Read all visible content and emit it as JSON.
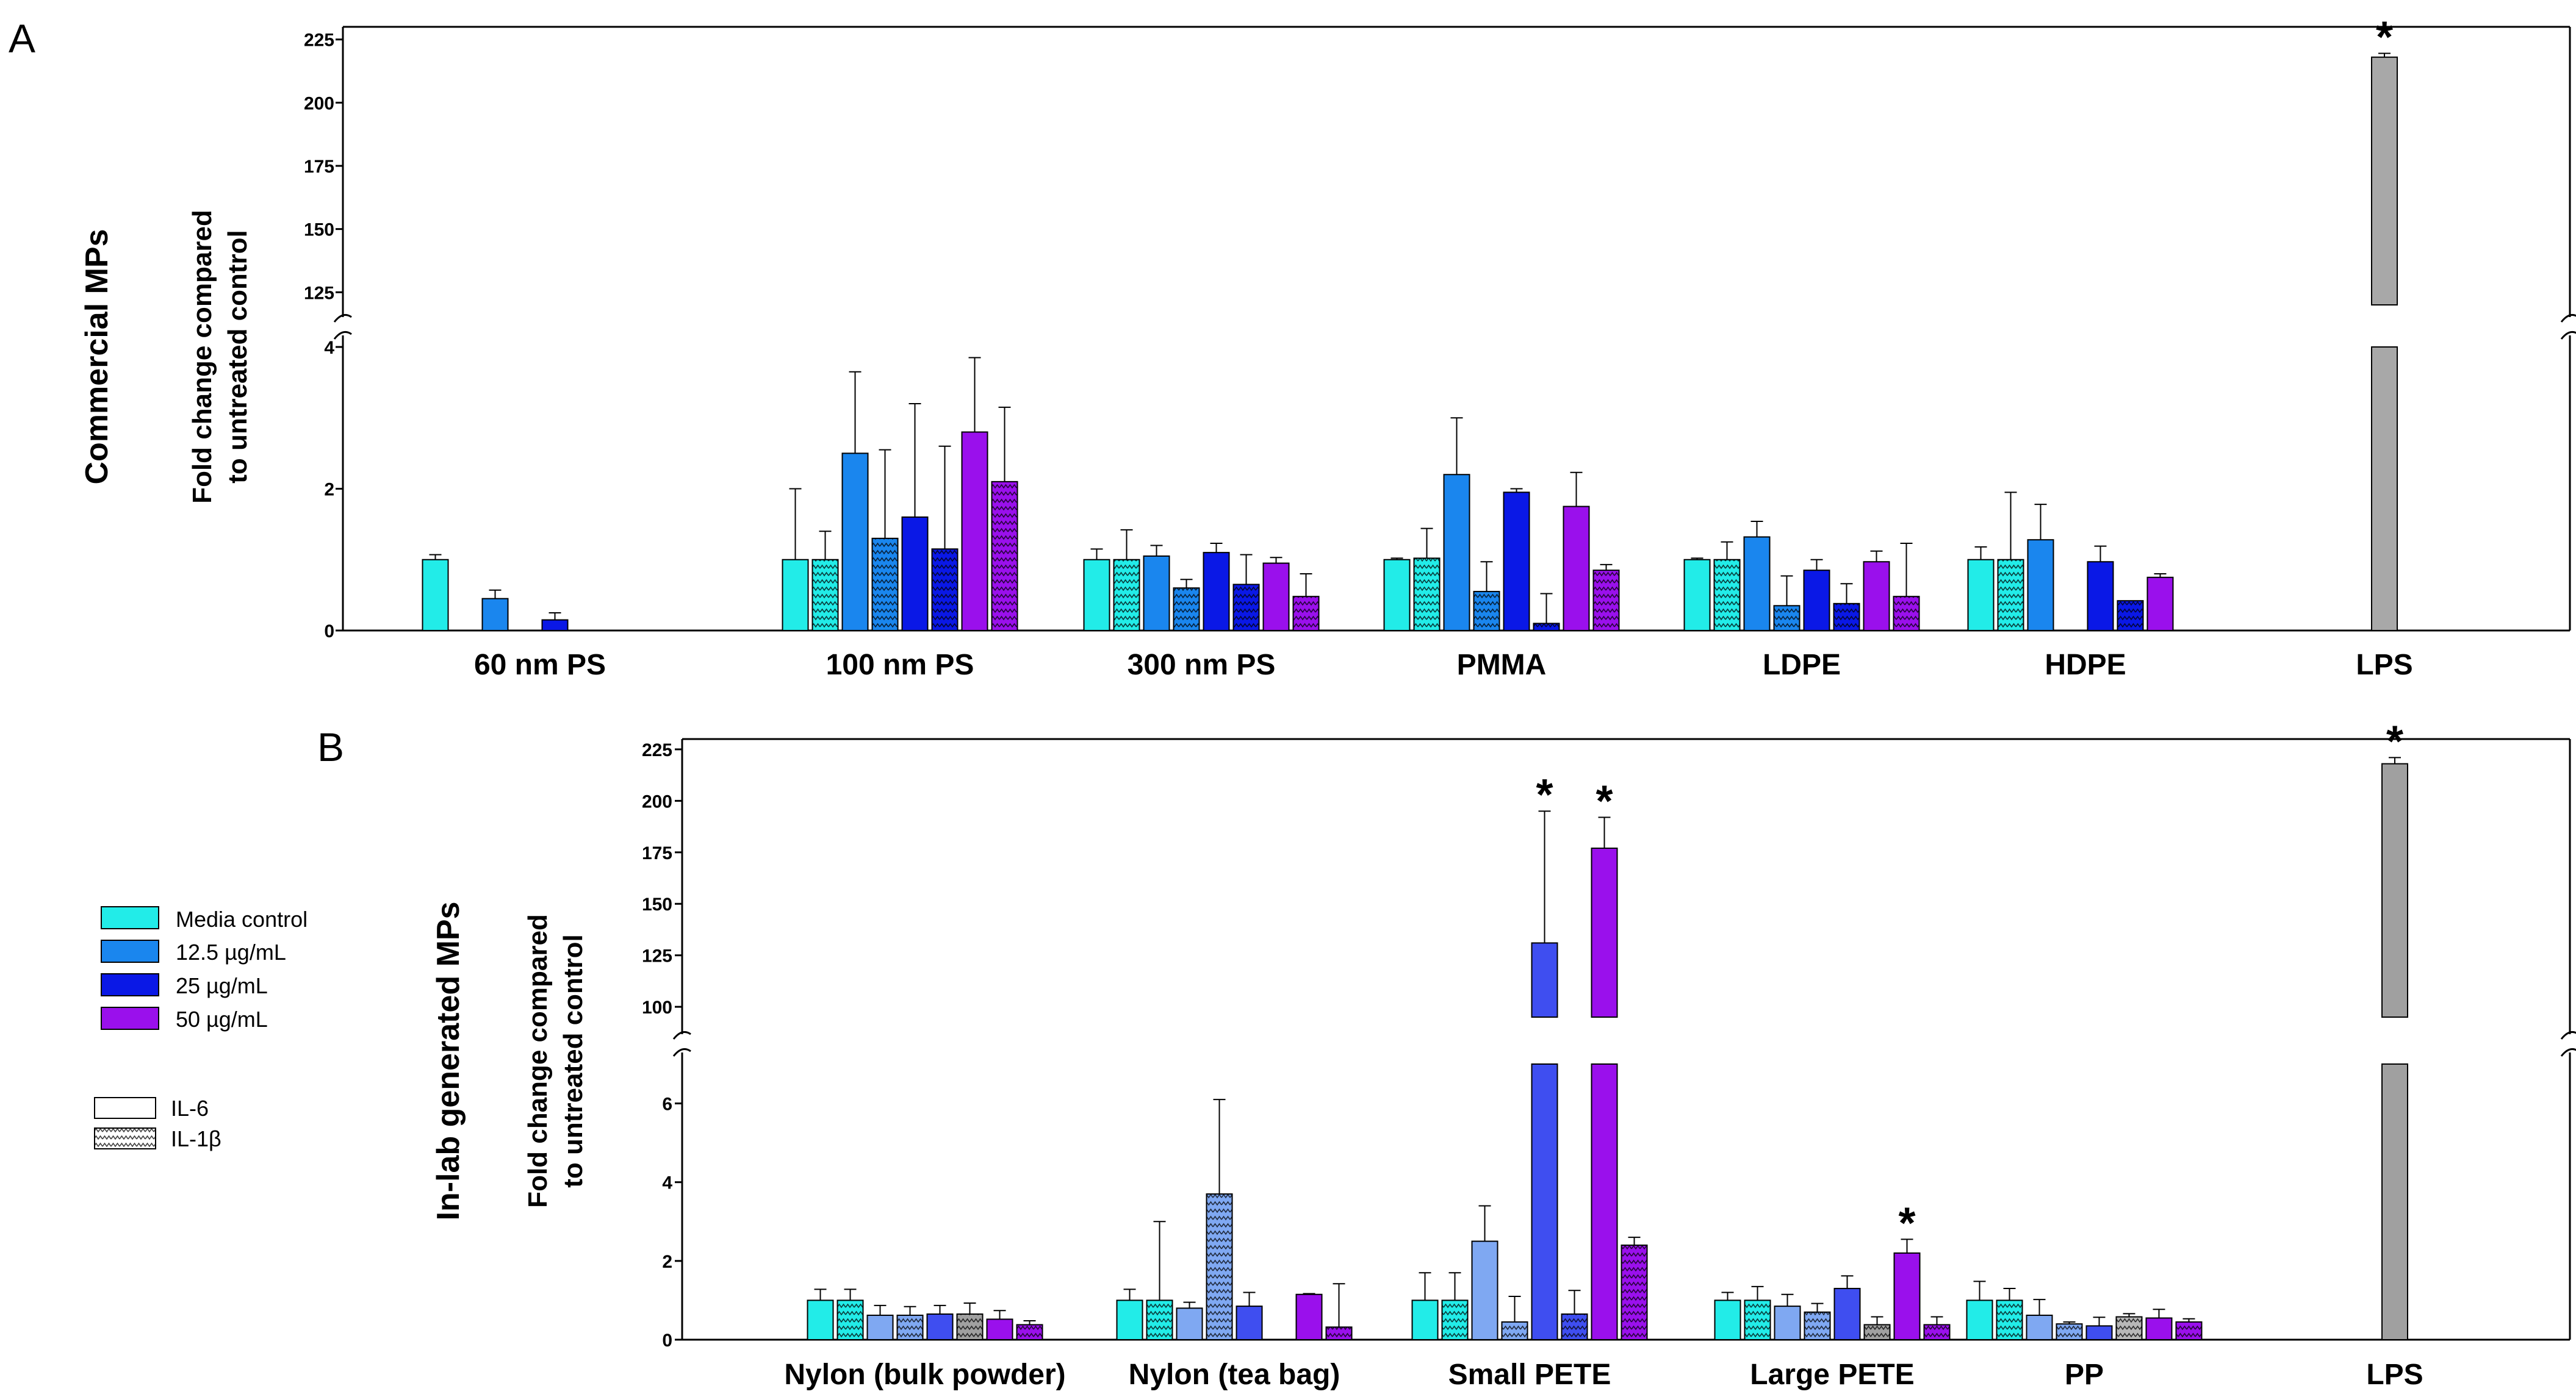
{
  "colors": {
    "media": "#22ece8",
    "c12_5": "#1a86ee",
    "c25": "#0a18e6",
    "c50": "#9a10ec",
    "lps": "#a8a8a8",
    "light_blue": "#7fa8f2",
    "royal_blue": "#3f4ef0",
    "grey_dark": "#a0a0a0",
    "grey_light": "#b8b8b8"
  },
  "legend": {
    "concentration": [
      {
        "label": "Media control",
        "color_key": "media"
      },
      {
        "label": "12.5 µg/mL",
        "color_key": "c12_5"
      },
      {
        "label": "25 µg/mL",
        "color_key": "c25"
      },
      {
        "label": "50 µg/mL",
        "color_key": "c50"
      }
    ],
    "cytokine": [
      {
        "label": "IL-6",
        "pattern": false
      },
      {
        "label": "IL-1β",
        "pattern": true
      }
    ]
  },
  "chart_data": [
    {
      "panel": "A",
      "type": "bar",
      "side_label": "Commercial MPs",
      "ylabel_lines": [
        "Fold change compared",
        "to untreated control"
      ],
      "ylim_lower": [
        0,
        4
      ],
      "ylim_upper": [
        120,
        230
      ],
      "yticks_lower": [
        "0",
        "2",
        "4"
      ],
      "yticks_upper": [
        "125",
        "150",
        "175",
        "200",
        "225"
      ],
      "categories": [
        "60 nm PS",
        "100 nm PS",
        "300 nm PS",
        "PMMA",
        "LDPE",
        "HDPE",
        "LPS"
      ],
      "bars": [
        {
          "cat": 0,
          "slot": 0,
          "value": 1.0,
          "err": 0.07,
          "color": "media",
          "hatch": false
        },
        {
          "cat": 0,
          "slot": 2,
          "value": 0.45,
          "err": 0.12,
          "color": "c12_5",
          "hatch": false
        },
        {
          "cat": 0,
          "slot": 4,
          "value": 0.15,
          "err": 0.1,
          "color": "c25",
          "hatch": false
        },
        {
          "cat": 1,
          "slot": 0,
          "value": 1.0,
          "err": 1.0,
          "color": "media",
          "hatch": false
        },
        {
          "cat": 1,
          "slot": 1,
          "value": 1.0,
          "err": 0.4,
          "color": "media",
          "hatch": true
        },
        {
          "cat": 1,
          "slot": 2,
          "value": 2.5,
          "err": 1.15,
          "color": "c12_5",
          "hatch": false
        },
        {
          "cat": 1,
          "slot": 3,
          "value": 1.3,
          "err": 1.25,
          "color": "c12_5",
          "hatch": true
        },
        {
          "cat": 1,
          "slot": 4,
          "value": 1.6,
          "err": 1.6,
          "color": "c25",
          "hatch": false
        },
        {
          "cat": 1,
          "slot": 5,
          "value": 1.15,
          "err": 1.45,
          "color": "c25",
          "hatch": true
        },
        {
          "cat": 1,
          "slot": 6,
          "value": 2.8,
          "err": 1.05,
          "color": "c50",
          "hatch": false
        },
        {
          "cat": 1,
          "slot": 7,
          "value": 2.1,
          "err": 1.05,
          "color": "c50",
          "hatch": true
        },
        {
          "cat": 2,
          "slot": 0,
          "value": 1.0,
          "err": 0.15,
          "color": "media",
          "hatch": false
        },
        {
          "cat": 2,
          "slot": 1,
          "value": 1.0,
          "err": 0.42,
          "color": "media",
          "hatch": true
        },
        {
          "cat": 2,
          "slot": 2,
          "value": 1.05,
          "err": 0.15,
          "color": "c12_5",
          "hatch": false
        },
        {
          "cat": 2,
          "slot": 3,
          "value": 0.6,
          "err": 0.12,
          "color": "c12_5",
          "hatch": true
        },
        {
          "cat": 2,
          "slot": 4,
          "value": 1.1,
          "err": 0.13,
          "color": "c25",
          "hatch": false
        },
        {
          "cat": 2,
          "slot": 5,
          "value": 0.65,
          "err": 0.42,
          "color": "c25",
          "hatch": true
        },
        {
          "cat": 2,
          "slot": 6,
          "value": 0.95,
          "err": 0.08,
          "color": "c50",
          "hatch": false
        },
        {
          "cat": 2,
          "slot": 7,
          "value": 0.48,
          "err": 0.32,
          "color": "c50",
          "hatch": true
        },
        {
          "cat": 3,
          "slot": 0,
          "value": 1.0,
          "err": 0.02,
          "color": "media",
          "hatch": false
        },
        {
          "cat": 3,
          "slot": 1,
          "value": 1.02,
          "err": 0.42,
          "color": "media",
          "hatch": true
        },
        {
          "cat": 3,
          "slot": 2,
          "value": 2.2,
          "err": 0.8,
          "color": "c12_5",
          "hatch": false
        },
        {
          "cat": 3,
          "slot": 3,
          "value": 0.55,
          "err": 0.42,
          "color": "c12_5",
          "hatch": true
        },
        {
          "cat": 3,
          "slot": 4,
          "value": 1.95,
          "err": 0.05,
          "color": "c25",
          "hatch": false
        },
        {
          "cat": 3,
          "slot": 5,
          "value": 0.1,
          "err": 0.42,
          "color": "c25",
          "hatch": true
        },
        {
          "cat": 3,
          "slot": 6,
          "value": 1.75,
          "err": 0.48,
          "color": "c50",
          "hatch": false
        },
        {
          "cat": 3,
          "slot": 7,
          "value": 0.85,
          "err": 0.08,
          "color": "c50",
          "hatch": true
        },
        {
          "cat": 4,
          "slot": 0,
          "value": 1.0,
          "err": 0.02,
          "color": "media",
          "hatch": false
        },
        {
          "cat": 4,
          "slot": 1,
          "value": 1.0,
          "err": 0.25,
          "color": "media",
          "hatch": true
        },
        {
          "cat": 4,
          "slot": 2,
          "value": 1.32,
          "err": 0.22,
          "color": "c12_5",
          "hatch": false
        },
        {
          "cat": 4,
          "slot": 3,
          "value": 0.35,
          "err": 0.42,
          "color": "c12_5",
          "hatch": true
        },
        {
          "cat": 4,
          "slot": 4,
          "value": 0.85,
          "err": 0.15,
          "color": "c25",
          "hatch": false
        },
        {
          "cat": 4,
          "slot": 5,
          "value": 0.38,
          "err": 0.28,
          "color": "c25",
          "hatch": true
        },
        {
          "cat": 4,
          "slot": 6,
          "value": 0.97,
          "err": 0.15,
          "color": "c50",
          "hatch": false
        },
        {
          "cat": 4,
          "slot": 7,
          "value": 0.48,
          "err": 0.75,
          "color": "c50",
          "hatch": true
        },
        {
          "cat": 5,
          "slot": 0,
          "value": 1.0,
          "err": 0.18,
          "color": "media",
          "hatch": false
        },
        {
          "cat": 5,
          "slot": 1,
          "value": 1.0,
          "err": 0.95,
          "color": "media",
          "hatch": true
        },
        {
          "cat": 5,
          "slot": 2,
          "value": 1.28,
          "err": 0.5,
          "color": "c12_5",
          "hatch": false
        },
        {
          "cat": 5,
          "slot": 4,
          "value": 0.97,
          "err": 0.22,
          "color": "c25",
          "hatch": false
        },
        {
          "cat": 5,
          "slot": 5,
          "value": 0.42,
          "err": 0.0,
          "color": "c25",
          "hatch": true
        },
        {
          "cat": 5,
          "slot": 6,
          "value": 0.75,
          "err": 0.05,
          "color": "c50",
          "hatch": false
        },
        {
          "cat": 6,
          "slot": 3.5,
          "value": 218,
          "err": 1.5,
          "color": "lps",
          "hatch": false,
          "star": true
        }
      ],
      "star_text": "*"
    },
    {
      "panel": "B",
      "type": "bar",
      "side_label": "In-lab generated MPs",
      "ylabel_lines": [
        "Fold change compared",
        "to untreated control"
      ],
      "ylim_lower": [
        0,
        7
      ],
      "ylim_upper": [
        95,
        230
      ],
      "yticks_lower": [
        "0",
        "2",
        "4",
        "6"
      ],
      "yticks_upper": [
        "100",
        "125",
        "150",
        "175",
        "200",
        "225"
      ],
      "categories": [
        "Nylon (bulk powder)",
        "Nylon (tea bag)",
        "Small PETE",
        "Large PETE",
        "PP",
        "LPS"
      ],
      "bars": [
        {
          "cat": 0,
          "slot": 0,
          "value": 1.0,
          "err": 0.28,
          "color": "media",
          "hatch": false
        },
        {
          "cat": 0,
          "slot": 1,
          "value": 1.0,
          "err": 0.28,
          "color": "media",
          "hatch": true
        },
        {
          "cat": 0,
          "slot": 2,
          "value": 0.62,
          "err": 0.25,
          "color": "light_blue",
          "hatch": false
        },
        {
          "cat": 0,
          "slot": 3,
          "value": 0.62,
          "err": 0.22,
          "color": "light_blue",
          "hatch": true
        },
        {
          "cat": 0,
          "slot": 4,
          "value": 0.65,
          "err": 0.22,
          "color": "royal_blue",
          "hatch": false
        },
        {
          "cat": 0,
          "slot": 5,
          "value": 0.65,
          "err": 0.28,
          "color": "grey_dark",
          "hatch": true
        },
        {
          "cat": 0,
          "slot": 6,
          "value": 0.52,
          "err": 0.22,
          "color": "c50",
          "hatch": false
        },
        {
          "cat": 0,
          "slot": 7,
          "value": 0.38,
          "err": 0.1,
          "color": "c50",
          "hatch": true
        },
        {
          "cat": 1,
          "slot": 0,
          "value": 1.0,
          "err": 0.28,
          "color": "media",
          "hatch": false
        },
        {
          "cat": 1,
          "slot": 1,
          "value": 1.0,
          "err": 2.0,
          "color": "media",
          "hatch": true
        },
        {
          "cat": 1,
          "slot": 2,
          "value": 0.8,
          "err": 0.15,
          "color": "light_blue",
          "hatch": false
        },
        {
          "cat": 1,
          "slot": 3,
          "value": 3.7,
          "err": 2.4,
          "color": "light_blue",
          "hatch": true
        },
        {
          "cat": 1,
          "slot": 4,
          "value": 0.85,
          "err": 0.35,
          "color": "royal_blue",
          "hatch": false
        },
        {
          "cat": 1,
          "slot": 6,
          "value": 1.15,
          "err": 0.02,
          "color": "c50",
          "hatch": false
        },
        {
          "cat": 1,
          "slot": 7,
          "value": 0.32,
          "err": 1.1,
          "color": "c50",
          "hatch": true
        },
        {
          "cat": 2,
          "slot": 0,
          "value": 1.0,
          "err": 0.7,
          "color": "media",
          "hatch": false
        },
        {
          "cat": 2,
          "slot": 1,
          "value": 1.0,
          "err": 0.7,
          "color": "media",
          "hatch": true
        },
        {
          "cat": 2,
          "slot": 2,
          "value": 2.5,
          "err": 0.9,
          "color": "light_blue",
          "hatch": false
        },
        {
          "cat": 2,
          "slot": 3,
          "value": 0.45,
          "err": 0.65,
          "color": "light_blue",
          "hatch": true
        },
        {
          "cat": 2,
          "slot": 4,
          "value": 131,
          "err": 64,
          "color": "royal_blue",
          "hatch": false,
          "star": true
        },
        {
          "cat": 2,
          "slot": 5,
          "value": 0.65,
          "err": 0.6,
          "color": "royal_blue",
          "hatch": true
        },
        {
          "cat": 2,
          "slot": 6,
          "value": 177,
          "err": 15,
          "color": "c50",
          "hatch": false,
          "star": true
        },
        {
          "cat": 2,
          "slot": 7,
          "value": 2.4,
          "err": 0.2,
          "color": "c50",
          "hatch": true
        },
        {
          "cat": 3,
          "slot": 0,
          "value": 1.0,
          "err": 0.2,
          "color": "media",
          "hatch": false
        },
        {
          "cat": 3,
          "slot": 1,
          "value": 1.0,
          "err": 0.35,
          "color": "media",
          "hatch": true
        },
        {
          "cat": 3,
          "slot": 2,
          "value": 0.85,
          "err": 0.3,
          "color": "light_blue",
          "hatch": false
        },
        {
          "cat": 3,
          "slot": 3,
          "value": 0.7,
          "err": 0.22,
          "color": "light_blue",
          "hatch": true
        },
        {
          "cat": 3,
          "slot": 4,
          "value": 1.3,
          "err": 0.32,
          "color": "royal_blue",
          "hatch": false
        },
        {
          "cat": 3,
          "slot": 5,
          "value": 0.38,
          "err": 0.2,
          "color": "grey_dark",
          "hatch": true
        },
        {
          "cat": 3,
          "slot": 6,
          "value": 2.2,
          "err": 0.35,
          "color": "c50",
          "hatch": false,
          "star": true
        },
        {
          "cat": 3,
          "slot": 7,
          "value": 0.38,
          "err": 0.2,
          "color": "c50",
          "hatch": true
        },
        {
          "cat": 4,
          "slot": 0,
          "value": 1.0,
          "err": 0.48,
          "color": "media",
          "hatch": false
        },
        {
          "cat": 4,
          "slot": 1,
          "value": 1.0,
          "err": 0.3,
          "color": "media",
          "hatch": true
        },
        {
          "cat": 4,
          "slot": 2,
          "value": 0.62,
          "err": 0.4,
          "color": "light_blue",
          "hatch": false
        },
        {
          "cat": 4,
          "slot": 3,
          "value": 0.4,
          "err": 0.05,
          "color": "light_blue",
          "hatch": true
        },
        {
          "cat": 4,
          "slot": 4,
          "value": 0.35,
          "err": 0.22,
          "color": "royal_blue",
          "hatch": false
        },
        {
          "cat": 4,
          "slot": 5,
          "value": 0.58,
          "err": 0.08,
          "color": "grey_light",
          "hatch": true
        },
        {
          "cat": 4,
          "slot": 6,
          "value": 0.55,
          "err": 0.22,
          "color": "c50",
          "hatch": false
        },
        {
          "cat": 4,
          "slot": 7,
          "value": 0.45,
          "err": 0.08,
          "color": "c50",
          "hatch": true
        },
        {
          "cat": 5,
          "slot": 3.5,
          "value": 218,
          "err": 3,
          "color": "grey_dark",
          "hatch": false,
          "star": true
        }
      ],
      "star_text": "*"
    }
  ]
}
